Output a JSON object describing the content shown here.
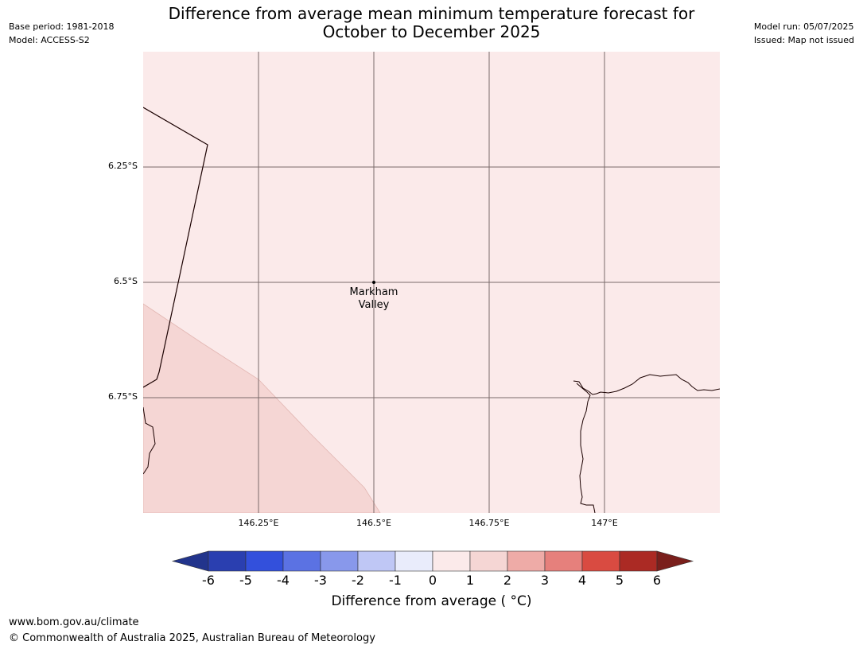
{
  "meta": {
    "base_period": "Base period: 1981-2018",
    "model": "Model: ACCESS-S2",
    "model_run": "Model run: 05/07/2025",
    "issued": "Issued: Map not issued"
  },
  "title": {
    "line1": "Difference from average mean minimum temperature forecast for",
    "line2": "October to December 2025"
  },
  "map": {
    "place_label_line1": "Markham",
    "place_label_line2": "Valley",
    "lat_labels": [
      "6.25°S",
      "6.5°S",
      "6.75°S"
    ],
    "lon_labels": [
      "146.25°E",
      "146.5°E",
      "146.75°E",
      "147°E"
    ],
    "colors": {
      "background_class": "#fbeaea",
      "warmer_class": "#f5d6d4",
      "gridline": "#7a6a6a",
      "coastline": "#1a0000"
    }
  },
  "colorbar": {
    "label": "Difference from average ( °C)",
    "ticks": [
      "-6",
      "-5",
      "-4",
      "-3",
      "-2",
      "-1",
      "0",
      "1",
      "2",
      "3",
      "4",
      "5",
      "6"
    ],
    "colors": [
      "#22348c",
      "#2a3fb0",
      "#3350dc",
      "#5b72e3",
      "#8898eb",
      "#bfc7f5",
      "#e9ecfb",
      "#fbeaea",
      "#f5d6d4",
      "#eeaba7",
      "#e6807c",
      "#d94b41",
      "#ab2a24",
      "#7a1f1c"
    ]
  },
  "footer": {
    "url": "www.bom.gov.au/climate",
    "copyright": "© Commonwealth of Australia 2025, Australian Bureau of Meteorology"
  }
}
